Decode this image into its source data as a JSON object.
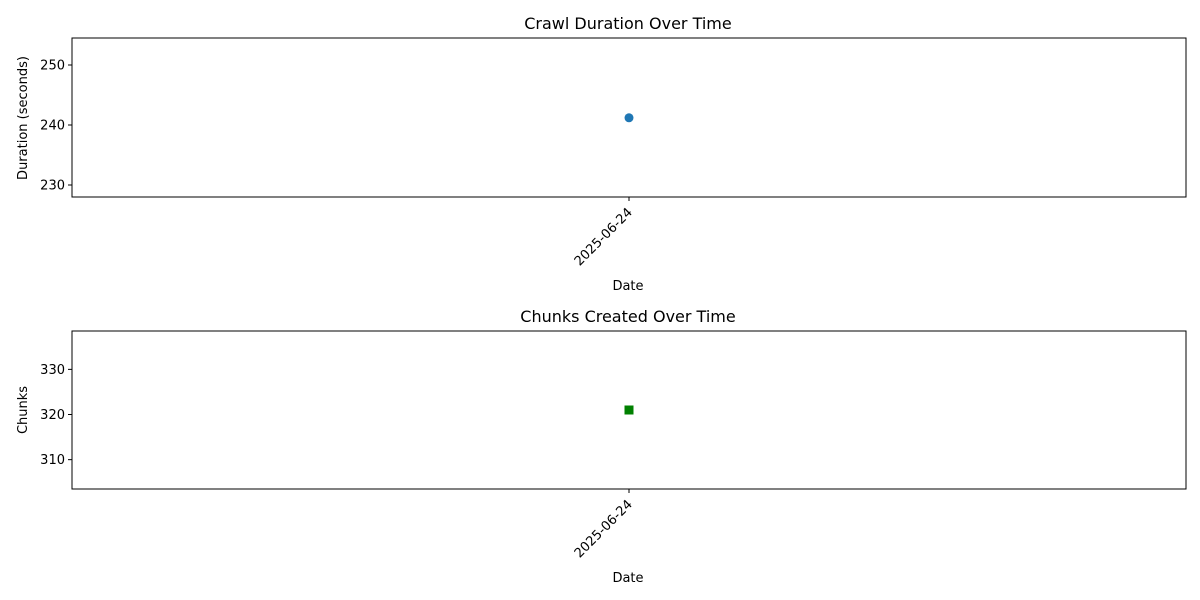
{
  "chart_data": [
    {
      "type": "scatter",
      "title": "Crawl Duration Over Time",
      "xlabel": "Date",
      "ylabel": "Duration (seconds)",
      "x": [
        "2025-06-24"
      ],
      "y": [
        241.2
      ],
      "ylim": [
        228,
        254.5
      ],
      "yticks": [
        230,
        240,
        250
      ],
      "marker": "circle",
      "color": "#1f77b4",
      "grid": false
    },
    {
      "type": "scatter",
      "title": "Chunks Created Over Time",
      "xlabel": "Date",
      "ylabel": "Chunks",
      "x": [
        "2025-06-24"
      ],
      "y": [
        321
      ],
      "ylim": [
        303.5,
        338.5
      ],
      "yticks": [
        310,
        320,
        330
      ],
      "marker": "square",
      "color": "#008000",
      "grid": false
    }
  ]
}
